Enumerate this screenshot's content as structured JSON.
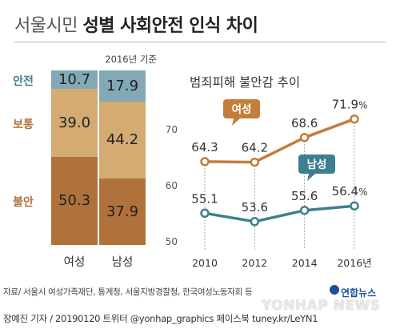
{
  "title": {
    "light": "서울시민",
    "bold": "성별 사회안전 인식 차이"
  },
  "bar_basis": "2016년 기준",
  "line_title": "범죄피해 불안감 추이",
  "source": "자료/ 서울시 여성가족재단, 통계청, 서울지방경찰청, 한국여성노동자회 등",
  "credit": "장예진 기자 / 20190120 트위터 @yonhap_graphics  페이스북 tuney.kr/LeYN1",
  "credit_name": "장예진 기자",
  "logo": {
    "ko": "연합뉴스",
    "en": "YONHAP NEWS"
  },
  "colors": {
    "safe": "#82a9b5",
    "normal": "#d3ab73",
    "anxious": "#b0713b",
    "female": "#c47d3a",
    "male": "#3d7f8f",
    "text": "#333333"
  },
  "chart_data": [
    {
      "type": "bar",
      "stacked": true,
      "categories": [
        "여성",
        "남성"
      ],
      "series": [
        {
          "name": "안전",
          "values": [
            10.7,
            17.9
          ]
        },
        {
          "name": "보통",
          "values": [
            39.0,
            44.2
          ]
        },
        {
          "name": "불안",
          "values": [
            50.3,
            37.9
          ]
        }
      ],
      "value_labels": [
        [
          "10.7",
          "39.0",
          "50.3"
        ],
        [
          "17.9",
          "44.2",
          "37.9"
        ]
      ],
      "ylim": [
        0,
        100
      ]
    },
    {
      "type": "line",
      "title": "범죄피해 불안감 추이",
      "x": [
        2010,
        2012,
        2014,
        2016
      ],
      "x_tick_labels": [
        "2010",
        "2012",
        "2014",
        "2016년"
      ],
      "y_ticks": [
        50,
        60,
        70
      ],
      "y_tick_labels": [
        "50",
        "60",
        "70"
      ],
      "ylim": [
        48,
        74
      ],
      "grid": false,
      "series": [
        {
          "name": "여성",
          "values": [
            64.3,
            64.2,
            68.6,
            71.9
          ],
          "labels": [
            "64.3",
            "64.2",
            "68.6",
            "71.9"
          ],
          "unit": "%"
        },
        {
          "name": "남성",
          "values": [
            55.1,
            53.6,
            55.6,
            56.4
          ],
          "labels": [
            "55.1",
            "53.6",
            "55.6",
            "56.4"
          ],
          "unit": "%"
        }
      ]
    }
  ]
}
